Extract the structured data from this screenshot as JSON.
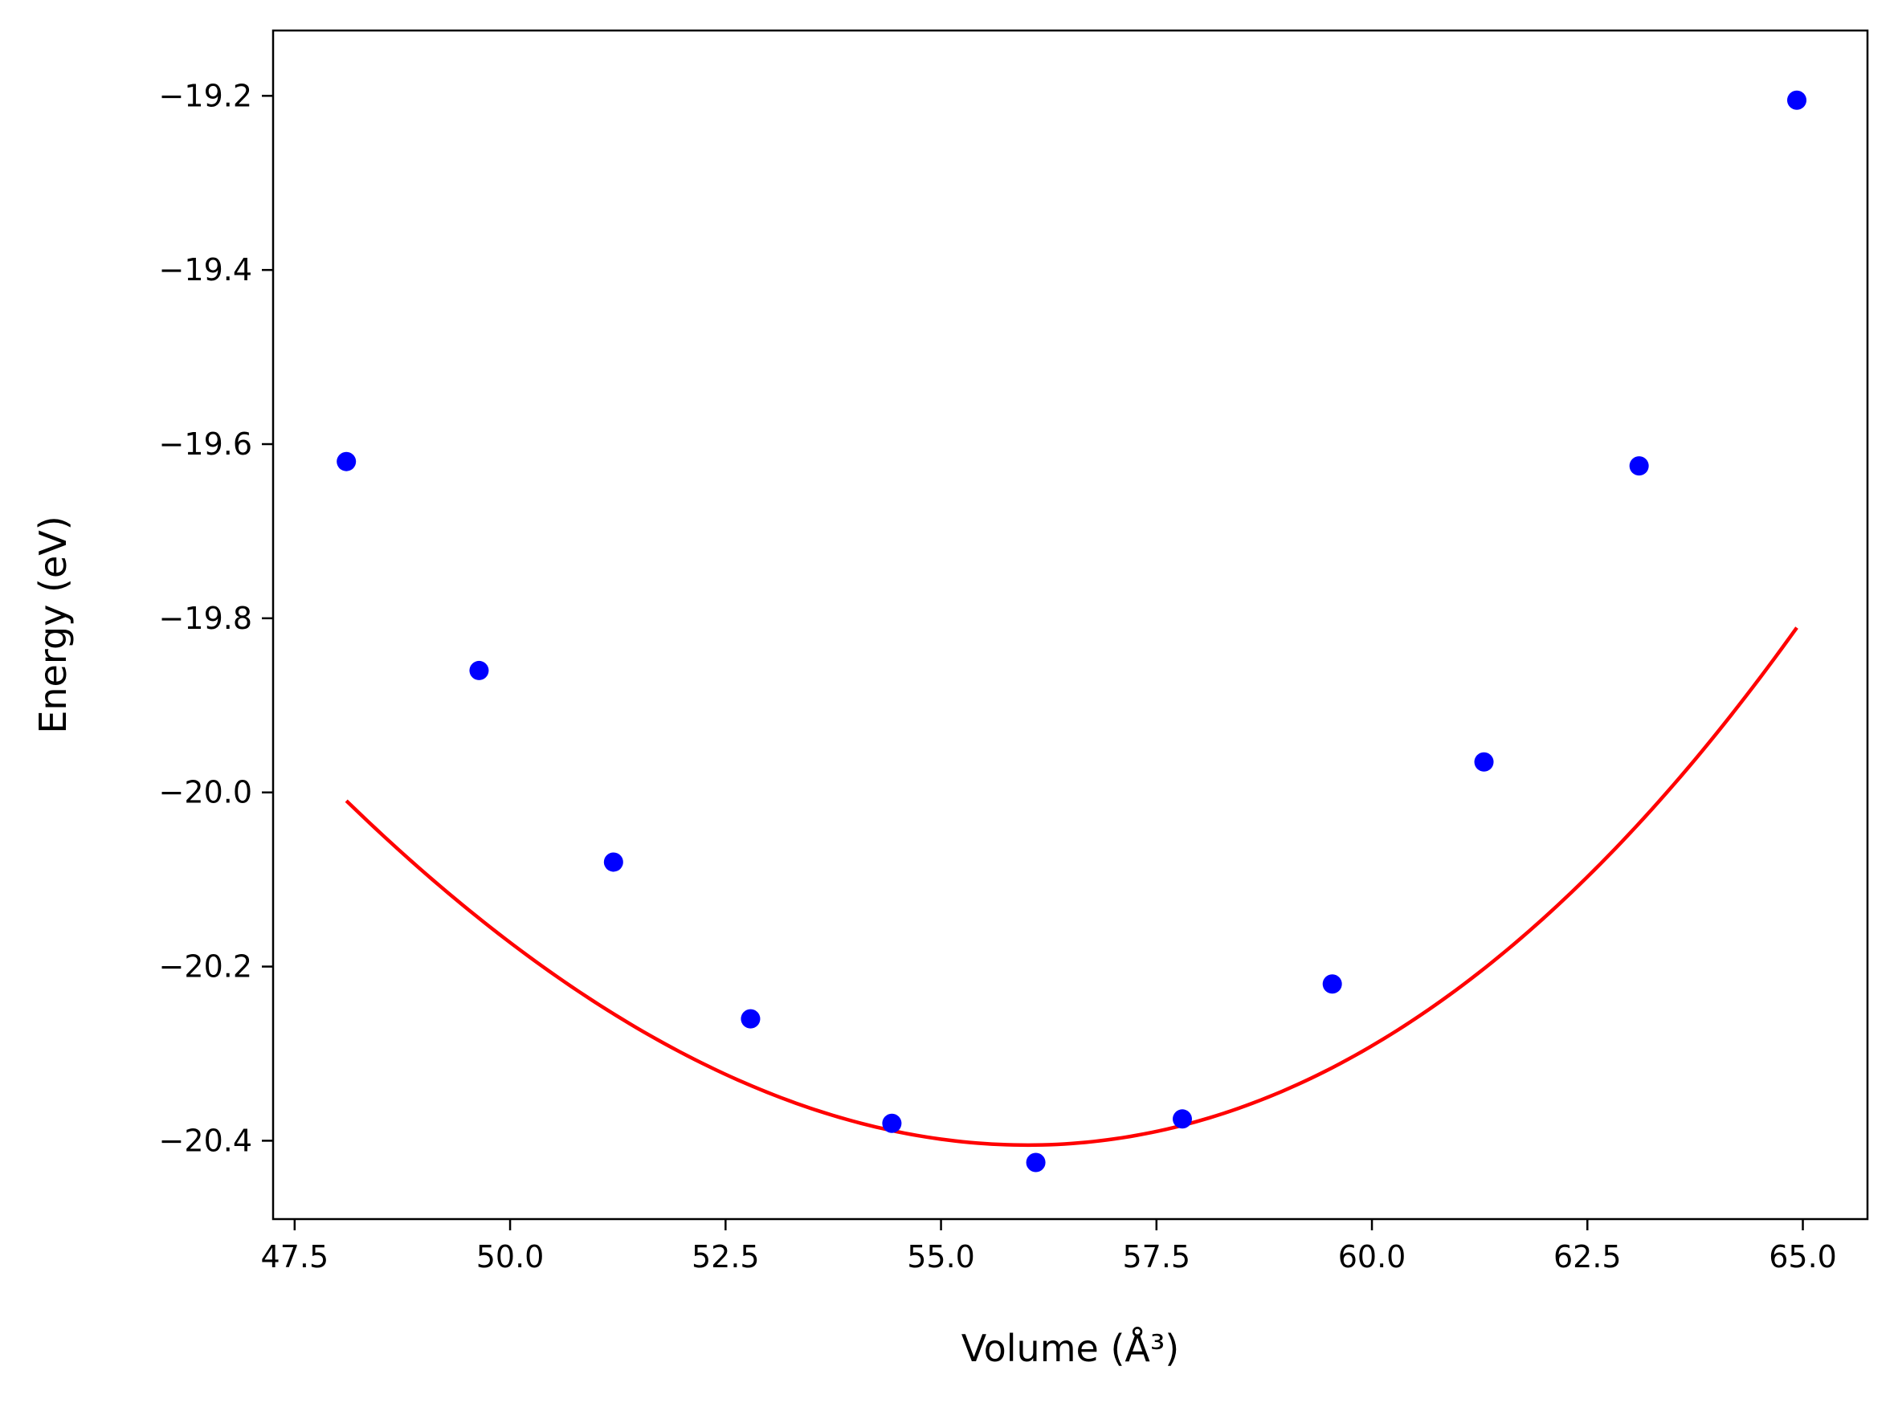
{
  "chart_data": {
    "type": "scatter",
    "title": "",
    "xlabel": "Volume (Å³)",
    "ylabel": "Energy (eV)",
    "xlim": [
      47.25,
      65.75
    ],
    "ylim": [
      -20.49,
      -19.125
    ],
    "xticks": [
      47.5,
      50.0,
      52.5,
      55.0,
      57.5,
      60.0,
      62.5,
      65.0
    ],
    "xtick_labels": [
      "47.5",
      "50.0",
      "52.5",
      "55.0",
      "57.5",
      "60.0",
      "62.5",
      "65.0"
    ],
    "yticks": [
      -19.2,
      -19.4,
      -19.6,
      -19.8,
      -20.0,
      -20.2,
      -20.4
    ],
    "ytick_labels": [
      "−19.2",
      "−19.4",
      "−19.6",
      "−19.8",
      "−20.0",
      "−20.2",
      "−20.4"
    ],
    "grid": false,
    "legend": "none",
    "series": [
      {
        "kind": "scatter",
        "color": "#0000ff",
        "x": [
          48.1,
          49.64,
          51.2,
          52.79,
          54.43,
          56.1,
          57.8,
          59.54,
          61.3,
          63.1,
          64.93
        ],
        "y": [
          -19.62,
          -19.86,
          -20.08,
          -20.26,
          -20.38,
          -20.425,
          -20.375,
          -20.22,
          -19.965,
          -19.625,
          -19.205
        ]
      },
      {
        "kind": "line",
        "color": "#ff0000",
        "fit": {
          "type": "polynomial",
          "coefficients": [
            6.63e-05,
            0.00686,
            -20.405
          ],
          "center": 56.0
        },
        "xrange": [
          48.1,
          64.93
        ]
      }
    ]
  }
}
